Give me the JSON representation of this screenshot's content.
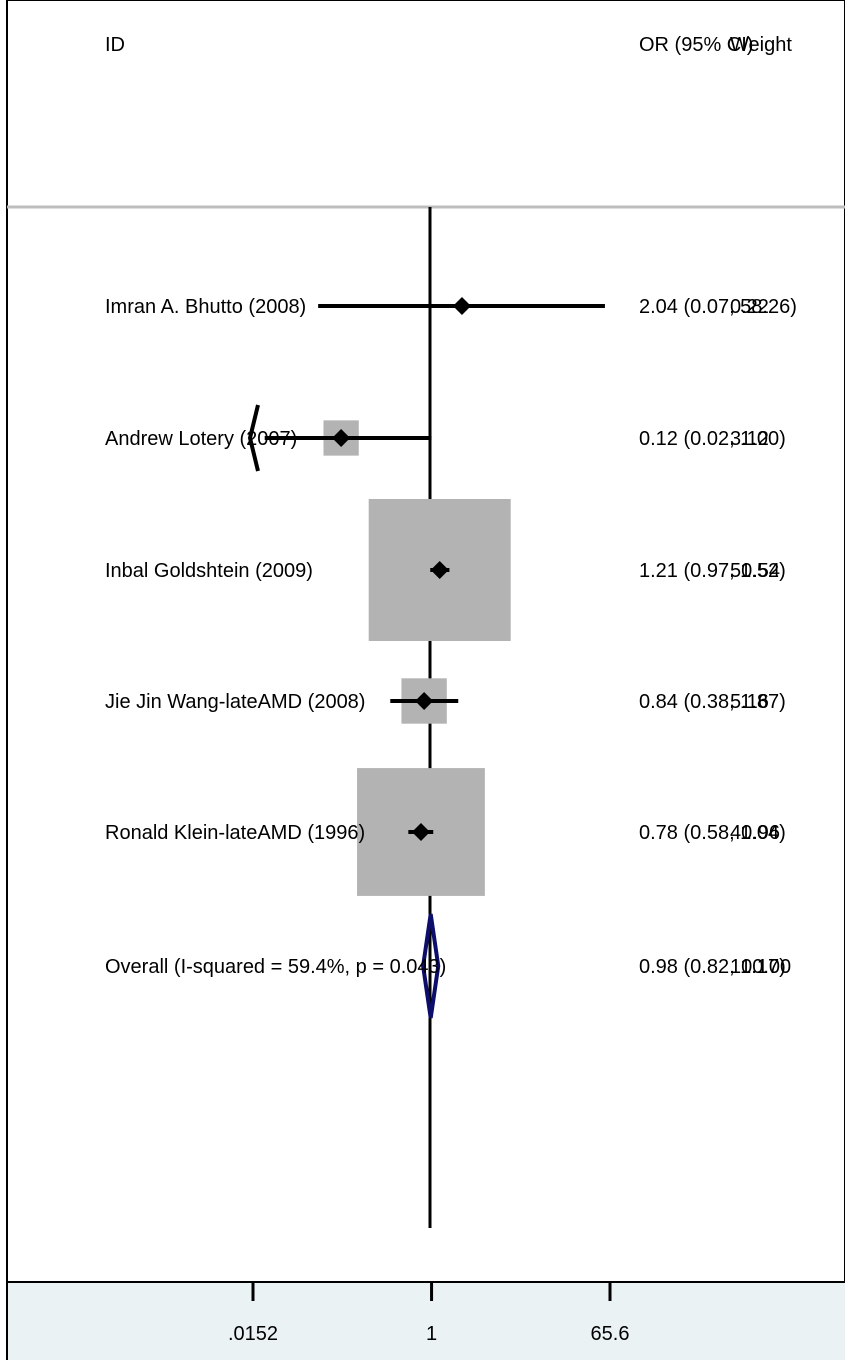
{
  "chart_data": {
    "type": "forest",
    "title": "",
    "header": {
      "id_label": "ID",
      "effect_label": "OR (95% CI)",
      "weight_label": "Weight"
    },
    "x_scale": "log",
    "xlim": [
      0.0152,
      65.6
    ],
    "null_value": 1,
    "x_ticks": [
      {
        "value": 0.0152,
        "label": ".0152"
      },
      {
        "value": 1,
        "label": "1"
      },
      {
        "value": 65.6,
        "label": "65.6"
      }
    ],
    "studies": [
      {
        "label": "Imran A. Bhutto (2008)",
        "or": 2.04,
        "ci_low": 0.07,
        "ci_high": 58.26,
        "weight": 0.22,
        "or_ci_text": "2.04 (0.07, 58.26)",
        "weight_text": "0.22",
        "arrow_low": false
      },
      {
        "label": "Andrew Lotery (2007)",
        "or": 0.12,
        "ci_low": 0.02,
        "ci_high": 1.0,
        "weight": 3.12,
        "or_ci_text": "0.12 (0.02, 1.00)",
        "weight_text": "3.12",
        "arrow_low": true
      },
      {
        "label": "Inbal Goldshtein (2009)",
        "or": 1.21,
        "ci_low": 0.97,
        "ci_high": 1.52,
        "weight": 50.54,
        "or_ci_text": "1.21 (0.97, 1.52)",
        "weight_text": "50.54",
        "arrow_low": false
      },
      {
        "label": "Jie Jin Wang-lateAMD (2008)",
        "or": 0.84,
        "ci_low": 0.38,
        "ci_high": 1.87,
        "weight": 5.16,
        "or_ci_text": "0.84 (0.38, 1.87)",
        "weight_text": "5.16",
        "arrow_low": false
      },
      {
        "label": "Ronald Klein-lateAMD (1996)",
        "or": 0.78,
        "ci_low": 0.58,
        "ci_high": 1.04,
        "weight": 40.96,
        "or_ci_text": "0.78 (0.58, 1.04)",
        "weight_text": "40.96",
        "arrow_low": false
      }
    ],
    "overall": {
      "label": "Overall  (I-squared = 59.4%, p = 0.043)",
      "or": 0.98,
      "ci_low": 0.82,
      "ci_high": 1.17,
      "or_ci_text": "0.98 (0.82, 1.17)",
      "weight_text": "100.00"
    },
    "colors": {
      "box": "#b3b3b3",
      "line": "#000000",
      "diamond": "#0d0d6b",
      "axis_band": "#eaf2f3",
      "header_rule": "#bdbdbd"
    }
  }
}
